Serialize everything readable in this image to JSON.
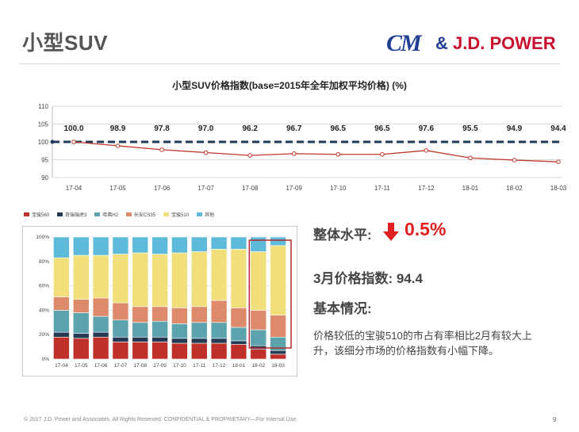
{
  "header": {
    "title": "小型SUV",
    "logo_mark": "CM",
    "logo_amp": "&",
    "logo_text": "J.D. POWER"
  },
  "chart_data": [
    {
      "type": "line",
      "title": "小型SUV价格指数(base=2015年全年加权平均价格) (%)",
      "x": [
        "17-04",
        "17-05",
        "17-06",
        "17-07",
        "17-08",
        "17-09",
        "17-10",
        "17-11",
        "17-12",
        "18-01",
        "18-02",
        "18-03"
      ],
      "series": [
        {
          "values": [
            100.0,
            98.9,
            97.8,
            97.0,
            96.2,
            96.7,
            96.5,
            96.5,
            97.6,
            95.5,
            94.9,
            94.4
          ],
          "color": "#c0392b"
        }
      ],
      "data_labels": [
        "100.0",
        "98.9",
        "97.8",
        "97.0",
        "96.2",
        "96.7",
        "96.5",
        "96.5",
        "97.6",
        "95.5",
        "94.9",
        "94.4"
      ],
      "reference_line": 100,
      "reference_color": "#1f3a55",
      "ylim": [
        90,
        110
      ],
      "yticks": [
        90,
        95,
        100,
        105,
        110
      ],
      "grid": true
    },
    {
      "type": "bar",
      "stacked": true,
      "percent": true,
      "categories": [
        "17-04",
        "17-05",
        "17-06",
        "17-07",
        "17-08",
        "17-09",
        "17-10",
        "17-11",
        "17-12",
        "18-01",
        "18-02",
        "18-03"
      ],
      "series": [
        {
          "name": "宝骏560",
          "color": "#c0302b",
          "values": [
            18,
            17,
            18,
            14,
            14,
            14,
            13,
            13,
            13,
            12,
            8,
            4
          ]
        },
        {
          "name": "奇瑞瑞虎3",
          "color": "#253b54",
          "values": [
            4,
            4,
            4,
            4,
            4,
            4,
            4,
            4,
            4,
            3,
            3,
            3
          ]
        },
        {
          "name": "哈弗H2",
          "color": "#5ba3ad",
          "values": [
            18,
            17,
            13,
            14,
            12,
            13,
            12,
            13,
            13,
            11,
            13,
            11
          ]
        },
        {
          "name": "长安CS35",
          "color": "#dd8a6a",
          "values": [
            11,
            11,
            15,
            14,
            13,
            12,
            13,
            13,
            18,
            16,
            16,
            18
          ]
        },
        {
          "name": "宝骏510",
          "color": "#f1df7c",
          "values": [
            32,
            36,
            35,
            40,
            44,
            43,
            45,
            45,
            42,
            48,
            48,
            57
          ]
        },
        {
          "name": "其他",
          "color": "#5ebad9",
          "values": [
            17,
            15,
            15,
            14,
            13,
            14,
            13,
            12,
            10,
            10,
            12,
            7
          ]
        }
      ],
      "ylim": [
        0,
        100
      ],
      "yticks": [
        "0%",
        "20%",
        "40%",
        "60%",
        "80%",
        "100%"
      ],
      "highlight": [
        "18-02",
        "18-03"
      ],
      "highlight_color": "#b3282d"
    }
  ],
  "summary": {
    "overall_label": "整体水平:",
    "overall_value": "0.5%",
    "overall_direction": "down-arrow-icon",
    "march_index": "3月价格指数: 94.4",
    "basic_label": "基本情况:",
    "description": "价格较低的宝骏510的市占有率相比2月有较大上升，该细分市场的价格指数有小幅下降。"
  },
  "footer": {
    "copyright": "© 2017 J.D. Power and Associates. All Rights Reserved. CONFIDENTIAL & PROPRIETARY—For Internal Use.",
    "page": "9"
  }
}
